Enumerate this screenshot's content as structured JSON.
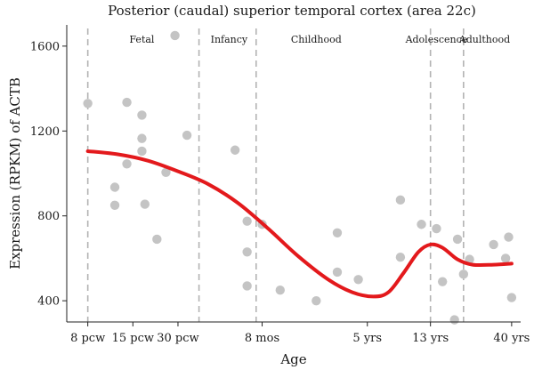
{
  "chart_data": {
    "type": "scatter",
    "title": "Posterior (caudal) superior temporal cortex (area 22c)",
    "xlabel": "Age",
    "ylabel": "Expression (RPKM) of ACTB",
    "ylim": [
      300,
      1700
    ],
    "yticks": [
      400,
      800,
      1200,
      1600
    ],
    "xticks": [
      {
        "label": "8 pcw",
        "x": 1.0
      },
      {
        "label": "15 pcw",
        "x": 2.5
      },
      {
        "label": "30 pcw",
        "x": 4.0
      },
      {
        "label": "8 mos",
        "x": 6.8
      },
      {
        "label": "5 yrs",
        "x": 10.3
      },
      {
        "label": "13 yrs",
        "x": 12.4
      },
      {
        "label": "40 yrs",
        "x": 15.1
      }
    ],
    "xlim": [
      0.3,
      15.4
    ],
    "period_boundaries": [
      1.0,
      4.7,
      6.6,
      12.4,
      13.5
    ],
    "periods": [
      {
        "label": "Fetal",
        "x": 2.8
      },
      {
        "label": "Infancy",
        "x": 5.7
      },
      {
        "label": "Childhood",
        "x": 8.6
      },
      {
        "label": "Adolescence",
        "x": 12.6
      },
      {
        "label": "Adulthood",
        "x": 14.2
      }
    ],
    "points": [
      {
        "x": 1.0,
        "y": 1330
      },
      {
        "x": 1.9,
        "y": 935
      },
      {
        "x": 1.9,
        "y": 850
      },
      {
        "x": 2.3,
        "y": 1335
      },
      {
        "x": 2.3,
        "y": 1045
      },
      {
        "x": 2.8,
        "y": 1275
      },
      {
        "x": 2.8,
        "y": 1165
      },
      {
        "x": 2.8,
        "y": 1105
      },
      {
        "x": 2.9,
        "y": 855
      },
      {
        "x": 3.3,
        "y": 690
      },
      {
        "x": 3.6,
        "y": 1005
      },
      {
        "x": 3.9,
        "y": 1650
      },
      {
        "x": 4.3,
        "y": 1180
      },
      {
        "x": 5.9,
        "y": 1110
      },
      {
        "x": 6.3,
        "y": 775
      },
      {
        "x": 6.3,
        "y": 630
      },
      {
        "x": 6.3,
        "y": 470
      },
      {
        "x": 6.8,
        "y": 760
      },
      {
        "x": 7.4,
        "y": 450
      },
      {
        "x": 8.6,
        "y": 400
      },
      {
        "x": 9.3,
        "y": 720
      },
      {
        "x": 9.3,
        "y": 535
      },
      {
        "x": 10.0,
        "y": 500
      },
      {
        "x": 11.4,
        "y": 875
      },
      {
        "x": 11.4,
        "y": 605
      },
      {
        "x": 12.1,
        "y": 760
      },
      {
        "x": 12.6,
        "y": 740
      },
      {
        "x": 12.8,
        "y": 490
      },
      {
        "x": 13.2,
        "y": 310
      },
      {
        "x": 13.3,
        "y": 690
      },
      {
        "x": 13.5,
        "y": 525
      },
      {
        "x": 13.7,
        "y": 595
      },
      {
        "x": 14.5,
        "y": 665
      },
      {
        "x": 14.9,
        "y": 600
      },
      {
        "x": 15.0,
        "y": 700
      },
      {
        "x": 15.1,
        "y": 415
      }
    ],
    "trend_line": [
      {
        "x": 1.0,
        "y": 1105
      },
      {
        "x": 2.0,
        "y": 1090
      },
      {
        "x": 3.0,
        "y": 1060
      },
      {
        "x": 4.0,
        "y": 1010
      },
      {
        "x": 5.0,
        "y": 950
      },
      {
        "x": 6.0,
        "y": 860
      },
      {
        "x": 7.0,
        "y": 740
      },
      {
        "x": 8.0,
        "y": 610
      },
      {
        "x": 9.0,
        "y": 500
      },
      {
        "x": 9.8,
        "y": 440
      },
      {
        "x": 10.5,
        "y": 420
      },
      {
        "x": 11.0,
        "y": 440
      },
      {
        "x": 11.5,
        "y": 530
      },
      {
        "x": 12.0,
        "y": 630
      },
      {
        "x": 12.4,
        "y": 665
      },
      {
        "x": 12.8,
        "y": 650
      },
      {
        "x": 13.3,
        "y": 595
      },
      {
        "x": 13.8,
        "y": 570
      },
      {
        "x": 14.5,
        "y": 570
      },
      {
        "x": 15.1,
        "y": 575
      }
    ],
    "series_color": "#e3191c",
    "point_color": "#c4c4c4",
    "divider_color": "#b3b3b3"
  }
}
